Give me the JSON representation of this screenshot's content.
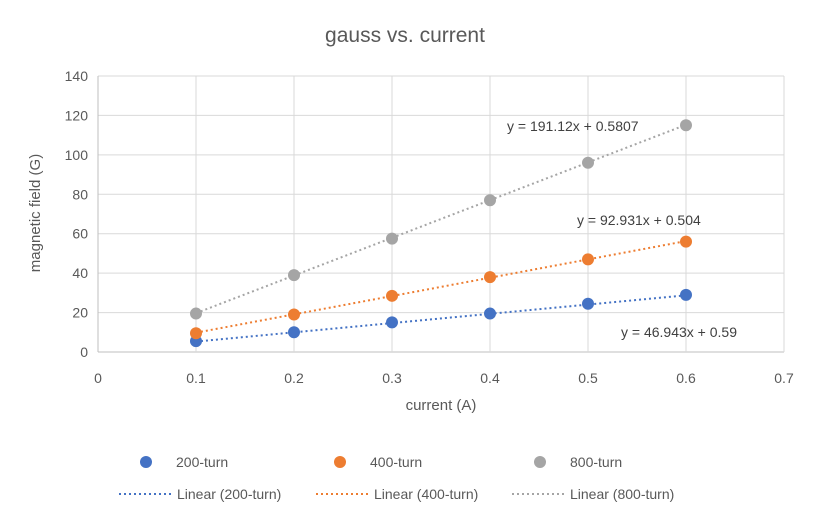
{
  "chart_data": {
    "type": "scatter",
    "title": "gauss vs. current",
    "xlabel": "current (A)",
    "ylabel": "magnetic field (G)",
    "xlim": [
      0,
      0.7
    ],
    "ylim": [
      0,
      140
    ],
    "x_ticks": [
      0,
      0.1,
      0.2,
      0.3,
      0.4,
      0.5,
      0.6,
      0.7
    ],
    "x_tick_labels": [
      "0",
      "0.1",
      "0.2",
      "0.3",
      "0.4",
      "0.5",
      "0.6",
      "0.7"
    ],
    "y_ticks": [
      0,
      20,
      40,
      60,
      80,
      100,
      120,
      140
    ],
    "y_tick_labels": [
      "0",
      "20",
      "40",
      "60",
      "80",
      "100",
      "120",
      "140"
    ],
    "grid": true,
    "legend_position": "bottom",
    "series": [
      {
        "name": "200-turn",
        "color": "#4472C4",
        "x": [
          0.1,
          0.2,
          0.3,
          0.4,
          0.5,
          0.6
        ],
        "y": [
          5.5,
          10,
          15,
          19.5,
          24.5,
          29
        ],
        "trendline": {
          "label": "Linear (200-turn)",
          "slope": 46.943,
          "intercept": 0.59,
          "equation": "y = 46.943x + 0.59"
        }
      },
      {
        "name": "400-turn",
        "color": "#ED7D31",
        "x": [
          0.1,
          0.2,
          0.3,
          0.4,
          0.5,
          0.6
        ],
        "y": [
          9.5,
          19,
          28.5,
          38,
          47,
          56
        ],
        "trendline": {
          "label": "Linear (400-turn)",
          "slope": 92.931,
          "intercept": 0.504,
          "equation": "y = 92.931x + 0.504"
        }
      },
      {
        "name": "800-turn",
        "color": "#A5A5A5",
        "x": [
          0.1,
          0.2,
          0.3,
          0.4,
          0.5,
          0.6
        ],
        "y": [
          19.5,
          39,
          57.5,
          77,
          96,
          115
        ],
        "trendline": {
          "label": "Linear (800-turn)",
          "slope": 191.12,
          "intercept": 0.5807,
          "equation": "y = 191.12x + 0.5807"
        }
      }
    ]
  }
}
